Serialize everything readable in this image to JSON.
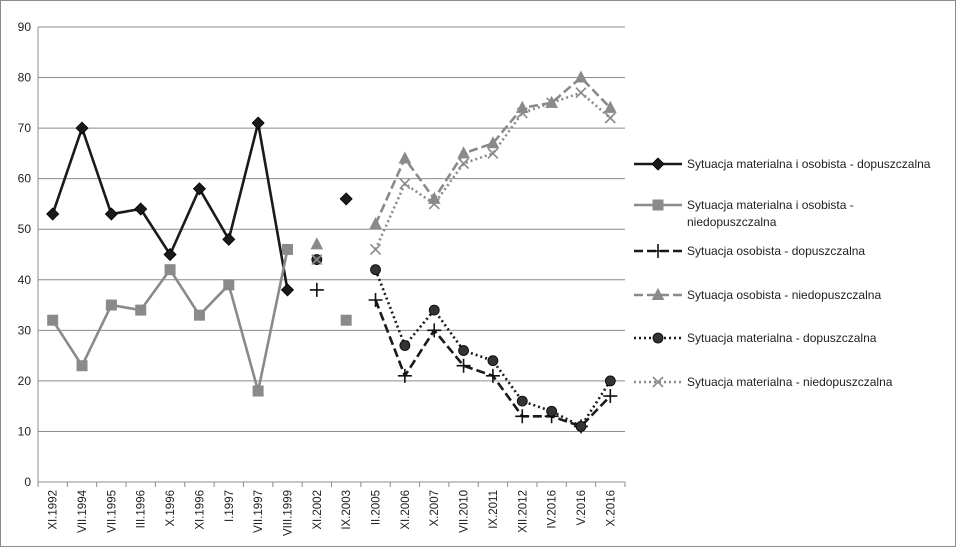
{
  "chart_data": {
    "type": "line",
    "title": "",
    "xlabel": "",
    "ylabel": "",
    "ylim": [
      0,
      90
    ],
    "yticks": [
      0,
      10,
      20,
      30,
      40,
      50,
      60,
      70,
      80,
      90
    ],
    "grid": true,
    "legend_position": "right",
    "categories": [
      "XI.1992",
      "VII.1994",
      "VII.1995",
      "III.1996",
      "X.1996",
      "XI.1996",
      "I.1997",
      "VII.1997",
      "VIII.1999",
      "XI.2002",
      "IX.2003",
      "II.2005",
      "XI.2006",
      "X.2007",
      "VII.2010",
      "IX.2011",
      "XII.2012",
      "IV.2016",
      "V.2016",
      "X.2016"
    ],
    "series": [
      {
        "name": "Sytuacja materialna i osobista - dopuszczalna",
        "legend_lines": [
          "Sytuacja materialna i osobista - dopuszczalna"
        ],
        "color": "#1a1a1a",
        "line": "solid",
        "marker": "diamond",
        "values": [
          53,
          70,
          53,
          54,
          45,
          58,
          48,
          71,
          38,
          null,
          56,
          null,
          null,
          null,
          null,
          null,
          null,
          null,
          null,
          null
        ]
      },
      {
        "name": "Sytuacja materialna i osobista - niedopuszczalna",
        "legend_lines": [
          "Sytuacja materialna i osobista -",
          "niedopuszczalna"
        ],
        "color": "#8a8a8a",
        "line": "solid",
        "marker": "square",
        "values": [
          32,
          23,
          35,
          34,
          42,
          33,
          39,
          18,
          46,
          null,
          32,
          null,
          null,
          null,
          null,
          null,
          null,
          null,
          null,
          null
        ]
      },
      {
        "name": "Sytuacja osobista - dopuszczalna",
        "legend_lines": [
          "Sytuacja osobista - dopuszczalna"
        ],
        "color": "#1a1a1a",
        "line": "dashed",
        "marker": "plus",
        "values": [
          null,
          null,
          null,
          null,
          null,
          null,
          null,
          null,
          null,
          38,
          null,
          36,
          21,
          30,
          23,
          21,
          13,
          13,
          11,
          17
        ]
      },
      {
        "name": "Sytuacja osobista - niedopuszczalna",
        "legend_lines": [
          "Sytuacja osobista - niedopuszczalna"
        ],
        "color": "#8a8a8a",
        "line": "dashed",
        "marker": "triangle",
        "values": [
          null,
          null,
          null,
          null,
          null,
          null,
          null,
          null,
          null,
          47,
          null,
          51,
          64,
          56,
          65,
          67,
          74,
          75,
          80,
          74
        ]
      },
      {
        "name": "Sytuacja materialna - dopuszczalna",
        "legend_lines": [
          "Sytuacja materialna - dopuszczalna"
        ],
        "color": "#1a1a1a",
        "line": "dotted",
        "marker": "circle",
        "values": [
          null,
          null,
          null,
          null,
          null,
          null,
          null,
          null,
          null,
          44,
          null,
          42,
          27,
          34,
          26,
          24,
          16,
          14,
          11,
          20
        ]
      },
      {
        "name": "Sytuacja materialna - niedopuszczalna",
        "legend_lines": [
          "Sytuacja materialna - niedopuszczalna"
        ],
        "color": "#8a8a8a",
        "line": "dotted",
        "marker": "x",
        "values": [
          null,
          null,
          null,
          null,
          null,
          null,
          null,
          null,
          null,
          44,
          null,
          46,
          59,
          55,
          63,
          65,
          73,
          75,
          77,
          72
        ]
      }
    ]
  }
}
